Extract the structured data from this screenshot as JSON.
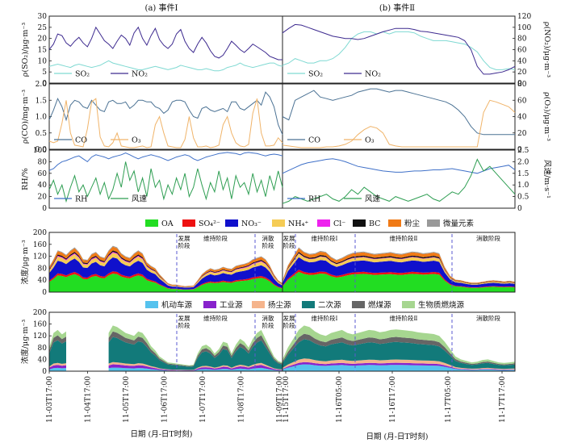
{
  "titles": {
    "left": "(a) 事件Ⅰ",
    "right": "(b) 事件Ⅱ"
  },
  "colors": {
    "SO2": "#7fd9d2",
    "NO2": "#3d2a8f",
    "CO": "#4b7294",
    "O3": "#f0b46a",
    "RH": "#3f70c8",
    "wind": "#2e9e52",
    "OA": "#22dd22",
    "SO4": "#ee1111",
    "NO3": "#1010cc",
    "NH4": "#f5cc55",
    "Cl": "#ee22ee",
    "BC": "#111111",
    "dust": "#f07a16",
    "trace": "#999999",
    "vehicle": "#55c2ee",
    "industry": "#8822cc",
    "dustsrc": "#f5b48c",
    "secondary": "#127a7a",
    "coal": "#666666",
    "biomass": "#a6d690"
  },
  "chart_data": [
    {
      "id": "p1",
      "type": "line",
      "ylabel_left": "ρ(SO₂)/μg·m⁻³",
      "ylabel_right": "ρ(NO₂)/μg·m⁻³",
      "ylim_left": [
        0,
        30
      ],
      "yticks_left": [
        "0",
        "5",
        "10",
        "15",
        "20",
        "25",
        "30"
      ],
      "ylim_right": [
        0,
        120
      ],
      "yticks_right": [
        "0",
        "20",
        "40",
        "60",
        "80",
        "100",
        "120"
      ],
      "legend": [
        {
          "key": "SO2",
          "label": "SO₂"
        },
        {
          "key": "NO2",
          "label": "NO₂"
        }
      ],
      "eventI": {
        "SO2": [
          7.5,
          8,
          8.5,
          8,
          7.5,
          7,
          8,
          8.5,
          8,
          7.5,
          7,
          7.5,
          8,
          9,
          10,
          9,
          8.5,
          8,
          7.5,
          7,
          6.5,
          6,
          6,
          6.5,
          7,
          7.5,
          7,
          6.5,
          6,
          6.5,
          7,
          8,
          7.5,
          7,
          6.5,
          6,
          6,
          6.5,
          6,
          5.5,
          5.5,
          6,
          7,
          7.5,
          8,
          9,
          8,
          7.5,
          7,
          7.5,
          8,
          8.5,
          9,
          9,
          8,
          7.5
        ],
        "NO2": [
          60,
          70,
          88,
          85,
          72,
          66,
          75,
          82,
          72,
          65,
          80,
          100,
          88,
          76,
          70,
          62,
          75,
          86,
          80,
          68,
          90,
          100,
          80,
          68,
          85,
          98,
          78,
          68,
          62,
          70,
          88,
          96,
          75,
          62,
          55,
          70,
          82,
          72,
          58,
          48,
          45,
          50,
          62,
          75,
          68,
          60,
          55,
          62,
          70,
          65,
          60,
          55,
          48,
          45,
          42,
          42
        ]
      },
      "eventII": {
        "SO2": [
          8,
          9,
          11,
          10,
          9,
          9,
          10,
          10,
          11,
          13,
          16,
          20,
          22,
          23,
          23,
          22,
          23,
          22,
          23,
          23,
          23,
          22.5,
          21,
          20,
          19,
          19,
          19,
          18.5,
          18,
          17.5,
          16,
          14,
          10,
          7,
          6,
          6,
          6.5,
          6
        ],
        "NO2": [
          90,
          98,
          105,
          104,
          100,
          96,
          92,
          88,
          84,
          82,
          80,
          80,
          78,
          80,
          84,
          88,
          92,
          95,
          98,
          98,
          98,
          96,
          93,
          92,
          90,
          88,
          86,
          84,
          82,
          76,
          60,
          30,
          16,
          16,
          18,
          20,
          24,
          30
        ]
      }
    },
    {
      "id": "p2",
      "type": "line",
      "ylabel_left": "ρ(CO)/mg·m⁻³",
      "ylabel_right": "ρ(O₃)/μg·m⁻³",
      "ylim_left": [
        0,
        2
      ],
      "yticks_left": [
        "0.0",
        "0.5",
        "1.0",
        "1.5",
        "2.0"
      ],
      "ylim_right": [
        0,
        80
      ],
      "yticks_right": [
        "0",
        "20",
        "40",
        "60",
        "80"
      ],
      "legend": [
        {
          "key": "CO",
          "label": "CO"
        },
        {
          "key": "O3",
          "label": "O₃"
        }
      ],
      "eventI": {
        "CO": [
          0.9,
          1.2,
          1.55,
          1.3,
          0.9,
          1.35,
          1.5,
          1.45,
          1.3,
          1.25,
          1.5,
          1.35,
          1.2,
          1.15,
          1.45,
          1.5,
          1.4,
          1.4,
          1.45,
          1.25,
          1.35,
          1.5,
          1.5,
          1.45,
          1.45,
          1.3,
          1.25,
          1.1,
          1.2,
          1.45,
          1.5,
          1.5,
          1.45,
          1.2,
          1.0,
          0.95,
          1.25,
          1.3,
          1.2,
          1.15,
          1.2,
          1.25,
          1.15,
          1.45,
          1.45,
          1.25,
          1.2,
          1.3,
          1.4,
          1.5,
          1.35,
          1.75,
          1.6,
          1.3,
          0.75,
          0.45
        ],
        "O3": [
          10,
          8,
          10,
          32,
          60,
          20,
          5,
          4,
          3,
          25,
          58,
          62,
          15,
          4,
          3,
          8,
          20,
          4,
          3,
          2,
          2,
          3,
          4,
          2,
          3,
          30,
          40,
          20,
          4,
          3,
          2,
          2,
          12,
          40,
          14,
          3,
          3,
          4,
          2,
          3,
          5,
          30,
          40,
          20,
          8,
          4,
          3,
          6,
          44,
          62,
          20,
          4,
          4,
          5,
          14,
          8
        ]
      },
      "eventII": {
        "CO": [
          1.0,
          0.9,
          1.5,
          1.6,
          1.7,
          1.8,
          1.6,
          1.55,
          1.5,
          1.55,
          1.6,
          1.65,
          1.75,
          1.8,
          1.85,
          1.85,
          1.8,
          1.75,
          1.8,
          1.8,
          1.75,
          1.7,
          1.65,
          1.6,
          1.55,
          1.5,
          1.45,
          1.35,
          1.2,
          1.0,
          0.7,
          0.5,
          0.45,
          0.45,
          0.45,
          0.45,
          0.45,
          0.45
        ],
        "O3": [
          5,
          4,
          3,
          2,
          2,
          2,
          2,
          3,
          3,
          4,
          6,
          10,
          18,
          24,
          28,
          26,
          20,
          6,
          4,
          3,
          3,
          3,
          3,
          3,
          3,
          3,
          3,
          3,
          3,
          3,
          3,
          3,
          45,
          60,
          58,
          55,
          52,
          45
        ]
      }
    },
    {
      "id": "p3",
      "type": "line",
      "ylabel_left": "RH/%",
      "ylabel_right": "风速/m·s⁻¹",
      "ylim_left": [
        0,
        100
      ],
      "yticks_left": [
        "0",
        "20",
        "40",
        "60",
        "80",
        "100"
      ],
      "ylim_right": [
        0,
        2.5
      ],
      "yticks_right": [
        "0",
        "0.5",
        "1.0",
        "1.5",
        "2.0",
        "2.5"
      ],
      "legend": [
        {
          "key": "RH",
          "label": "RH"
        },
        {
          "key": "wind",
          "label": "风速"
        }
      ],
      "eventI": {
        "RH": [
          65,
          68,
          75,
          80,
          82,
          85,
          88,
          90,
          85,
          80,
          88,
          92,
          90,
          88,
          85,
          88,
          90,
          92,
          95,
          92,
          88,
          85,
          88,
          90,
          92,
          90,
          88,
          85,
          82,
          85,
          88,
          90,
          92,
          90,
          85,
          82,
          85,
          88,
          90,
          92,
          94,
          95,
          96,
          95,
          94,
          92,
          95,
          96,
          95,
          94,
          92,
          90,
          92,
          93,
          92,
          90
        ],
        "wind": [
          0.8,
          1.2,
          0.6,
          1.0,
          0.3,
          0.9,
          1.4,
          0.7,
          1.0,
          0.5,
          0.9,
          1.3,
          0.6,
          1.1,
          0.4,
          0.8,
          1.5,
          0.9,
          2.0,
          1.2,
          1.6,
          0.7,
          1.3,
          0.5,
          1.7,
          0.9,
          1.2,
          0.4,
          1.0,
          0.6,
          1.3,
          0.8,
          1.5,
          0.5,
          0.9,
          1.7,
          1.0,
          0.4,
          1.1,
          0.7,
          1.6,
          0.8,
          1.3,
          0.4,
          1.4,
          0.9,
          1.1,
          0.6,
          1.5,
          0.7,
          1.2,
          0.5,
          1.4,
          0.8,
          1.6,
          0.9
        ]
      },
      "eventII": {
        "RH": [
          60,
          65,
          70,
          75,
          78,
          80,
          82,
          84,
          85,
          83,
          80,
          76,
          72,
          70,
          68,
          66,
          64,
          63,
          62,
          62,
          63,
          64,
          64,
          65,
          66,
          66,
          67,
          68,
          66,
          64,
          62,
          60,
          64,
          68,
          70,
          72,
          74,
          66
        ],
        "wind": [
          0.2,
          0.3,
          0.5,
          0.4,
          0.3,
          0.4,
          0.5,
          0.6,
          0.4,
          0.3,
          0.5,
          0.8,
          0.6,
          0.9,
          0.7,
          0.5,
          0.4,
          0.3,
          0.5,
          0.4,
          0.3,
          0.4,
          0.5,
          0.6,
          0.4,
          0.3,
          0.5,
          0.7,
          0.6,
          0.9,
          1.4,
          2.1,
          1.6,
          1.8,
          1.5,
          1.2,
          0.9,
          0.6
        ]
      }
    },
    {
      "id": "p4",
      "type": "area",
      "ylabel_left": "浓度/μg·m⁻³",
      "ylim_left": [
        0,
        200
      ],
      "yticks_left": [
        "0",
        "40",
        "80",
        "120",
        "160",
        "200"
      ],
      "legend": [
        {
          "key": "OA",
          "label": "OA"
        },
        {
          "key": "SO4",
          "label": "SO₄²⁻"
        },
        {
          "key": "NO3",
          "label": "NO₃⁻"
        },
        {
          "key": "NH4",
          "label": "NH₄⁺"
        },
        {
          "key": "Cl",
          "label": "Cl⁻"
        },
        {
          "key": "BC",
          "label": "BC"
        },
        {
          "key": "dust",
          "label": "粉尘"
        },
        {
          "key": "trace",
          "label": "微量元素"
        }
      ],
      "stages_I": [
        {
          "label": "发展阶段"
        },
        {
          "label": "维持阶段"
        },
        {
          "label": "消散阶段"
        }
      ],
      "stages_II": [
        {
          "label": "发展阶段"
        },
        {
          "label": "维持阶段Ⅰ"
        },
        {
          "label": "维持阶段Ⅱ"
        },
        {
          "label": "消散阶段"
        }
      ],
      "eventI": {
        "total": [
          85,
          110,
          140,
          135,
          125,
          140,
          150,
          135,
          110,
          108,
          128,
          135,
          120,
          115,
          140,
          155,
          150,
          130,
          120,
          115,
          130,
          140,
          130,
          100,
          88,
          80,
          60,
          45,
          30,
          25,
          25,
          22,
          20,
          21,
          22,
          40,
          60,
          72,
          80,
          75,
          78,
          85,
          80,
          78,
          88,
          92,
          95,
          100,
          110,
          115,
          120,
          110,
          90,
          60,
          40,
          30
        ],
        "OA_share": 0.4,
        "SO4_share": 0.05,
        "NO3_share": 0.3,
        "NH4_share": 0.1,
        "Cl_share": 0.02,
        "BC_share": 0.03,
        "dust_share": 0.08,
        "trace_share": 0.02
      },
      "eventII": {
        "total": [
          40,
          90,
          120,
          150,
          135,
          128,
          130,
          138,
          135,
          118,
          108,
          115,
          125,
          132,
          134,
          136,
          132,
          128,
          130,
          132,
          134,
          130,
          128,
          132,
          136,
          134,
          130,
          132,
          135,
          130,
          85,
          55,
          42,
          40,
          35,
          32,
          32,
          35,
          38,
          40,
          38,
          36,
          38,
          35
        ],
        "OA_share": 0.45,
        "SO4_share": 0.05,
        "NO3_share": 0.28,
        "NH4_share": 0.08,
        "Cl_share": 0.01,
        "BC_share": 0.03,
        "dust_share": 0.08,
        "trace_share": 0.02
      }
    },
    {
      "id": "p5",
      "type": "area",
      "ylabel_left": "浓度/μg·m⁻³",
      "ylim_left": [
        0,
        200
      ],
      "yticks_left": [
        "0",
        "40",
        "80",
        "120",
        "160",
        "200"
      ],
      "legend": [
        {
          "key": "vehicle",
          "label": "机动车源"
        },
        {
          "key": "industry",
          "label": "工业源"
        },
        {
          "key": "dustsrc",
          "label": "扬尘源"
        },
        {
          "key": "secondary",
          "label": "二次源"
        },
        {
          "key": "coal",
          "label": "燃煤源"
        },
        {
          "key": "biomass",
          "label": "生物质燃烧源"
        }
      ],
      "stages_I": [
        {
          "label": "发展阶段"
        },
        {
          "label": "维持阶段"
        },
        {
          "label": "消散阶段"
        }
      ],
      "stages_II": [
        {
          "label": "发展阶段"
        },
        {
          "label": "维持阶段Ⅰ"
        },
        {
          "label": "维持阶段Ⅱ"
        },
        {
          "label": "消散阶段"
        }
      ],
      "eventI": {
        "total": [
          80,
          130,
          140,
          125,
          135,
          null,
          null,
          null,
          null,
          null,
          null,
          null,
          null,
          null,
          130,
          155,
          150,
          140,
          130,
          125,
          120,
          135,
          130,
          110,
          85,
          70,
          50,
          40,
          30,
          28,
          26,
          24,
          22,
          20,
          22,
          60,
          85,
          90,
          80,
          60,
          75,
          100,
          95,
          60,
          90,
          110,
          100,
          80,
          110,
          130,
          140,
          110,
          80,
          50,
          35,
          30
        ],
        "vehicle_share": 0.08,
        "industry_share": 0.07,
        "dustsrc_share": 0.05,
        "secondary_share": 0.55,
        "coal_share": 0.12,
        "biomass_share": 0.13
      },
      "eventII": {
        "total": [
          40,
          80,
          110,
          140,
          155,
          150,
          135,
          125,
          120,
          130,
          135,
          140,
          130,
          125,
          130,
          135,
          140,
          138,
          132,
          135,
          140,
          142,
          140,
          138,
          136,
          132,
          130,
          128,
          126,
          120,
          100,
          75,
          50,
          40,
          35,
          30,
          32,
          38,
          40,
          35,
          30,
          28,
          30,
          32
        ],
        "vehicle_share": 0.15,
        "industry_share": 0.05,
        "dustsrc_share": 0.08,
        "secondary_share": 0.42,
        "coal_share": 0.12,
        "biomass_share": 0.18
      }
    }
  ],
  "x_axis": {
    "eventI_ticks": [
      "11-03T17:00",
      "11-04T17:00",
      "11-05T17:00",
      "11-06T17:00",
      "11-07T17:00",
      "11-08T17:00",
      "11-09T17:00"
    ],
    "eventII_ticks": [
      "11-15T17:00",
      "11-16T05:00",
      "11-16T17:00",
      "11-17T05:00",
      "11-17T17:00"
    ],
    "xlabel": "日期 (月-日T时刻)"
  }
}
